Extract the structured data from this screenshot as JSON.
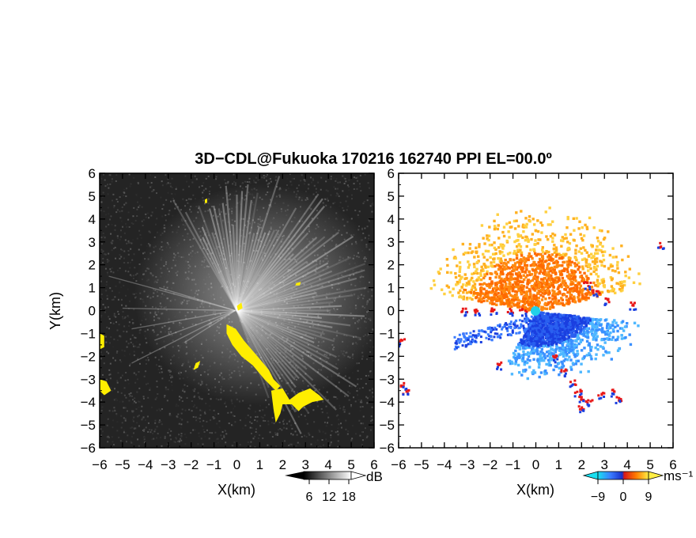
{
  "figure_title": "3D−CDL@Fukuoka 170216 162740 PPI EL=00.0º",
  "colors": {
    "yellow_mask": "#ffee00",
    "velocity_negative_deep": "#1a3fe0",
    "velocity_negative_light": "#4fb8ff",
    "velocity_zero_edge": "#ff2020",
    "velocity_positive_orange": "#ff7a00",
    "velocity_positive_light": "#ffcc33",
    "center_marker": "#22d0e8",
    "background_dark": "#242424"
  },
  "chart_data": [
    {
      "type": "heatmap",
      "panel": "left",
      "field": "signal-to-noise (grayscale)",
      "xlabel": "X(km)",
      "ylabel": "Y(km)",
      "xlim": [
        -6,
        6
      ],
      "ylim": [
        -6,
        6
      ],
      "x_ticks": [
        -6,
        -5,
        -4,
        -3,
        -2,
        -1,
        0,
        1,
        2,
        3,
        4,
        5,
        6
      ],
      "y_ticks": [
        -6,
        -5,
        -4,
        -3,
        -2,
        -1,
        0,
        1,
        2,
        3,
        4,
        5,
        6
      ],
      "colorbar": {
        "unit": "dB",
        "tick_labels": [
          "6",
          "12",
          "18"
        ],
        "tick_values": [
          6,
          12,
          18
        ]
      }
    },
    {
      "type": "heatmap",
      "panel": "right",
      "field": "radial velocity",
      "xlabel": "X(km)",
      "ylabel": "",
      "xlim": [
        -6,
        6
      ],
      "ylim": [
        -6,
        6
      ],
      "x_ticks": [
        -6,
        -5,
        -4,
        -3,
        -2,
        -1,
        0,
        1,
        2,
        3,
        4,
        5,
        6
      ],
      "y_ticks": [
        -6,
        -5,
        -4,
        -3,
        -2,
        -1,
        0,
        1,
        2,
        3,
        4,
        5,
        6
      ],
      "colorbar": {
        "unit": "ms⁻¹",
        "tick_labels": [
          "−9",
          "0",
          "9"
        ],
        "tick_values": [
          -9,
          0,
          9
        ]
      }
    }
  ]
}
